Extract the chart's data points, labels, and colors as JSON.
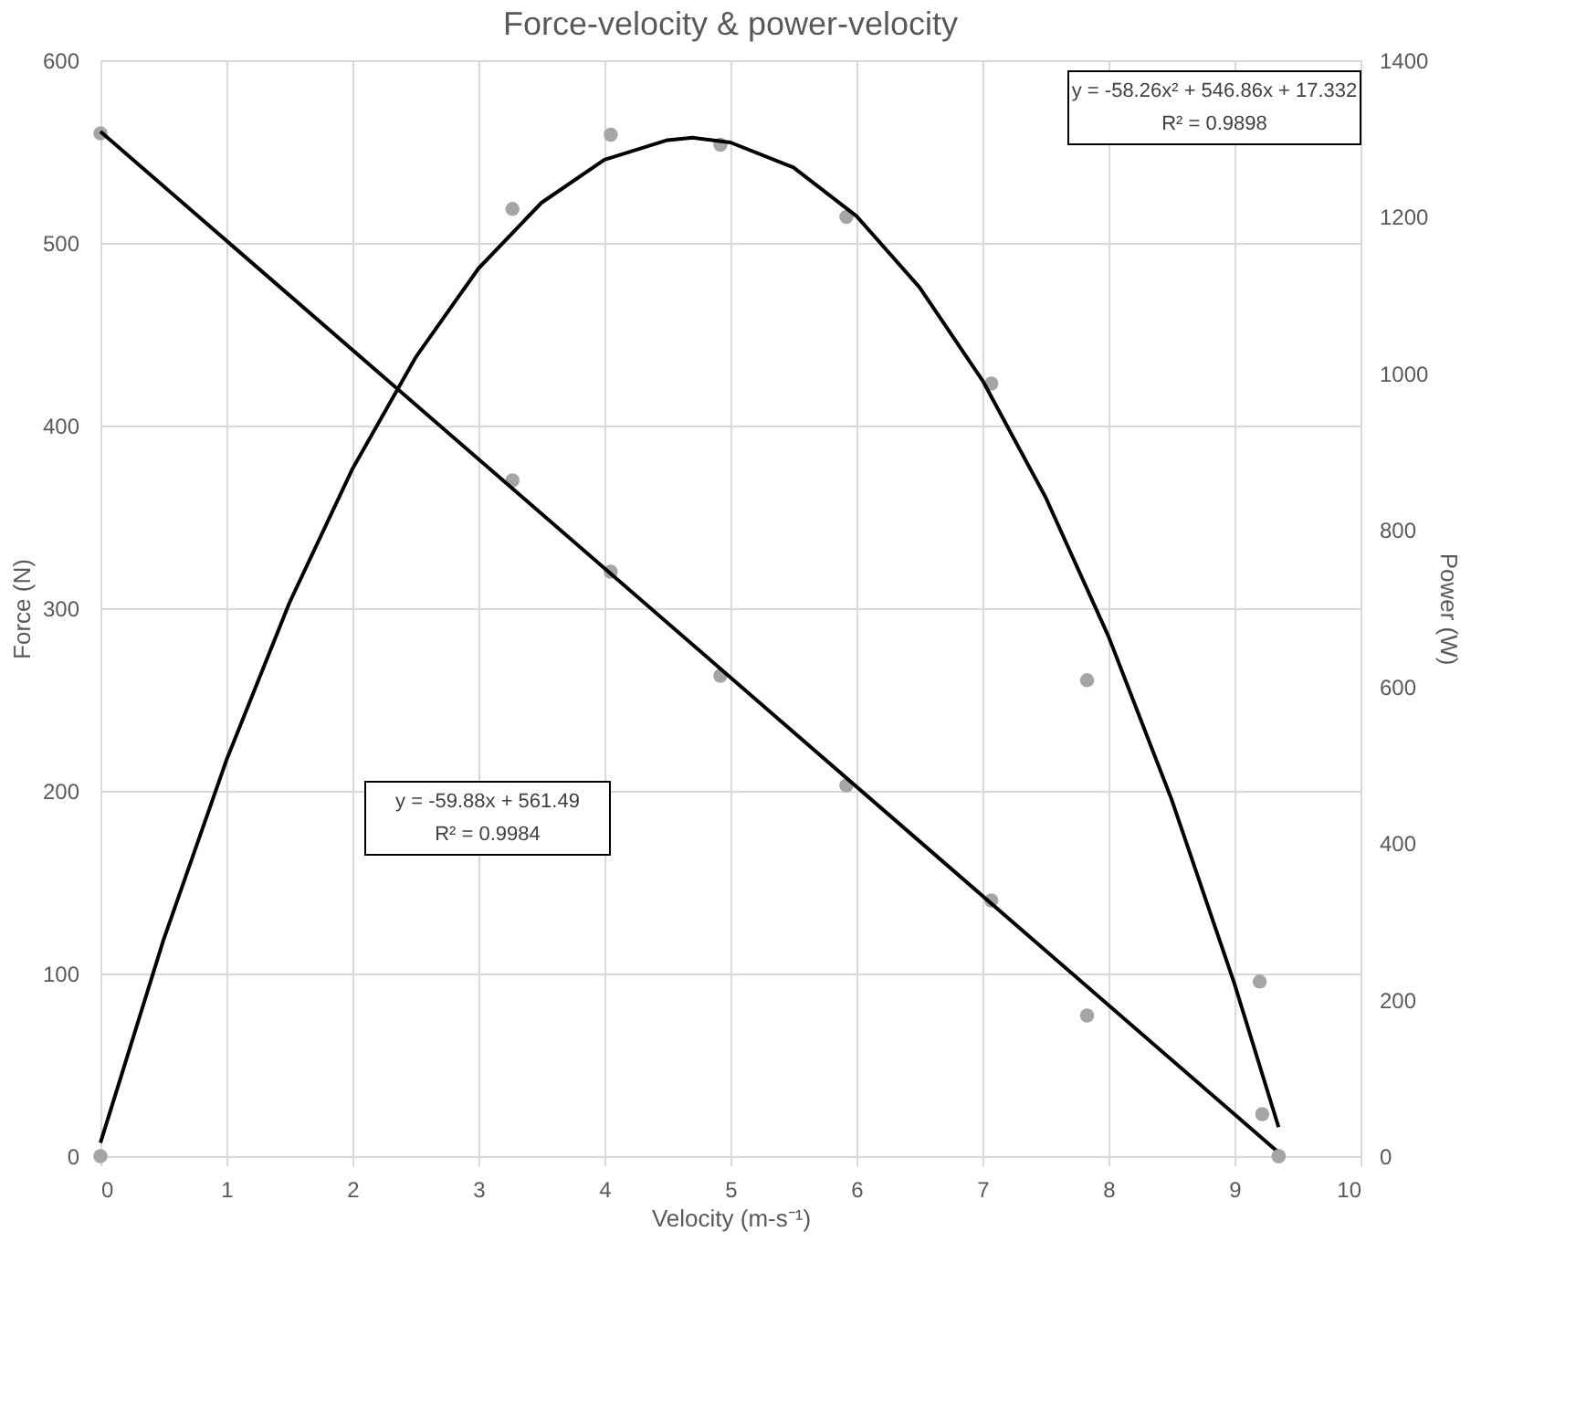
{
  "chart_data": {
    "type": "scatter",
    "title": "Force-velocity & power-velocity",
    "xlabel": "Velocity (m-s⁻¹)",
    "ylabel": "Force (N)",
    "y2label": "Power (W)",
    "xlim": [
      0,
      10
    ],
    "xticks": [
      0,
      1,
      2,
      3,
      4,
      5,
      6,
      7,
      8,
      9,
      10
    ],
    "ylim": [
      0,
      600
    ],
    "yticks": [
      0,
      100,
      200,
      300,
      400,
      500,
      600
    ],
    "y2lim": [
      0,
      1400
    ],
    "y2ticks": [
      0,
      200,
      400,
      600,
      800,
      1000,
      1200,
      1400
    ],
    "grid": true,
    "legend": false,
    "marker": "circle",
    "annotations": [
      "y = -58.26x² + 546.86x + 17.332\nR² = 0.9898",
      "y = -59.88x + 561.49\nR² = 0.9984"
    ],
    "series": [
      {
        "color": "#a5a5a5",
        "x": [
          0,
          3.27,
          4.05,
          4.92,
          5.92,
          7.07,
          7.83,
          9.22,
          9.35
        ],
        "values": [
          560,
          370,
          320,
          263,
          203,
          140,
          77,
          23,
          0
        ]
      },
      {
        "axis": "y2",
        "color": "#a5a5a5",
        "x": [
          0,
          3.27,
          4.05,
          4.92,
          5.92,
          7.07,
          7.83,
          9.2,
          9.35
        ],
        "values": [
          0,
          1210,
          1305,
          1292,
          1200,
          987,
          608,
          223,
          0
        ]
      },
      {
        "type": "line",
        "color": "#000000",
        "marker": "none",
        "x": [
          0,
          9.35
        ],
        "values": [
          561,
          2
        ]
      },
      {
        "type": "line",
        "axis": "y2",
        "color": "#000000",
        "marker": "none",
        "x": [
          0,
          0.5,
          1,
          1.5,
          2,
          2.5,
          3,
          3.5,
          4,
          4.5,
          4.7,
          5,
          5.5,
          6,
          6.5,
          7,
          7.5,
          8,
          8.5,
          9,
          9.35
        ],
        "values": [
          17,
          276,
          506,
          707,
          878,
          1020,
          1134,
          1218,
          1273,
          1298,
          1301,
          1295,
          1263,
          1201,
          1110,
          991,
          842,
          664,
          456,
          220,
          37
        ]
      }
    ]
  }
}
